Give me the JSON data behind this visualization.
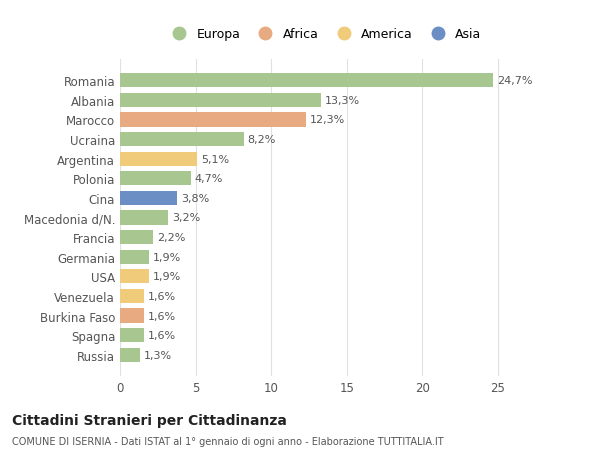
{
  "categories": [
    "Romania",
    "Albania",
    "Marocco",
    "Ucraina",
    "Argentina",
    "Polonia",
    "Cina",
    "Macedonia d/N.",
    "Francia",
    "Germania",
    "USA",
    "Venezuela",
    "Burkina Faso",
    "Spagna",
    "Russia"
  ],
  "values": [
    24.7,
    13.3,
    12.3,
    8.2,
    5.1,
    4.7,
    3.8,
    3.2,
    2.2,
    1.9,
    1.9,
    1.6,
    1.6,
    1.6,
    1.3
  ],
  "labels": [
    "24,7%",
    "13,3%",
    "12,3%",
    "8,2%",
    "5,1%",
    "4,7%",
    "3,8%",
    "3,2%",
    "2,2%",
    "1,9%",
    "1,9%",
    "1,6%",
    "1,6%",
    "1,6%",
    "1,3%"
  ],
  "bar_colors": [
    "#a8c68f",
    "#a8c68f",
    "#e8aa80",
    "#a8c68f",
    "#f0cb7a",
    "#a8c68f",
    "#6b8fc4",
    "#a8c68f",
    "#a8c68f",
    "#a8c68f",
    "#f0cb7a",
    "#f0cb7a",
    "#e8aa80",
    "#a8c68f",
    "#a8c68f"
  ],
  "continent_colors": {
    "Europa": "#a8c68f",
    "Africa": "#e8aa80",
    "America": "#f0cb7a",
    "Asia": "#6b8fc4"
  },
  "legend_labels": [
    "Europa",
    "Africa",
    "America",
    "Asia"
  ],
  "title": "Cittadini Stranieri per Cittadinanza",
  "subtitle": "COMUNE DI ISERNIA - Dati ISTAT al 1° gennaio di ogni anno - Elaborazione TUTTITALIA.IT",
  "xlim": [
    0,
    27
  ],
  "xticks": [
    0,
    5,
    10,
    15,
    20,
    25
  ],
  "background_color": "#ffffff",
  "plot_background": "#ffffff",
  "grid_color": "#e0e0e0"
}
